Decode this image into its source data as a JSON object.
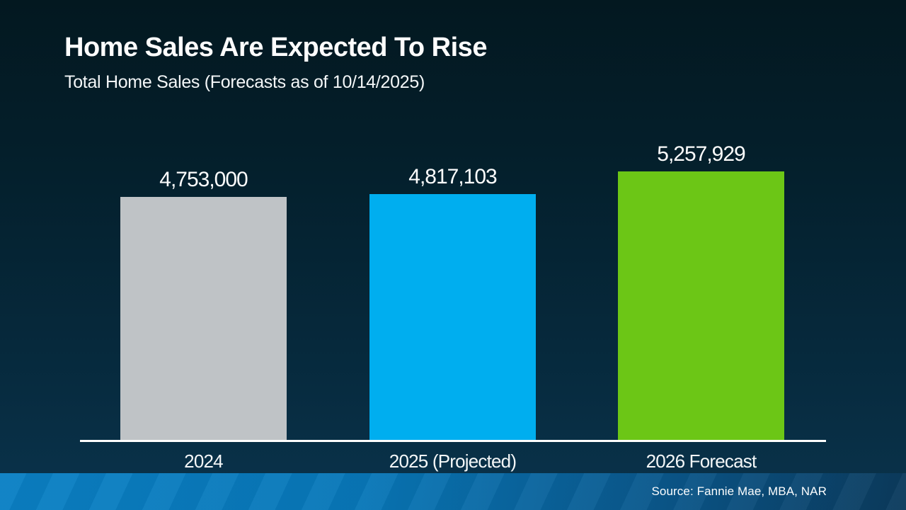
{
  "slide": {
    "title": "Home Sales Are Expected To Rise",
    "subtitle": "Total Home Sales (Forecasts as of 10/14/2025)",
    "source": "Source: Fannie Mae, MBA, NAR"
  },
  "colors": {
    "background_top": "#031820",
    "background_bottom": "#0a334c",
    "axis_line": "#ffffff",
    "text": "#ffffff",
    "footer_gradient_left": "#0a80c4",
    "footer_gradient_right": "#0b3a5c"
  },
  "chart_data": {
    "type": "bar",
    "title": "Home Sales Are Expected To Rise",
    "subtitle": "Total Home Sales (Forecasts as of 10/14/2025)",
    "categories": [
      "2024",
      "2025 (Projected)",
      "2026 Forecast"
    ],
    "values": [
      4753000,
      4817103,
      5257929
    ],
    "value_labels": [
      "4,753,000",
      "4,817,103",
      "5,257,929"
    ],
    "bar_colors": [
      "#bfc3c6",
      "#00aeef",
      "#6cc616"
    ],
    "ylim": [
      0,
      5257929
    ],
    "grid": false,
    "legend": "none",
    "source": "Source: Fannie Mae, MBA, NAR"
  }
}
